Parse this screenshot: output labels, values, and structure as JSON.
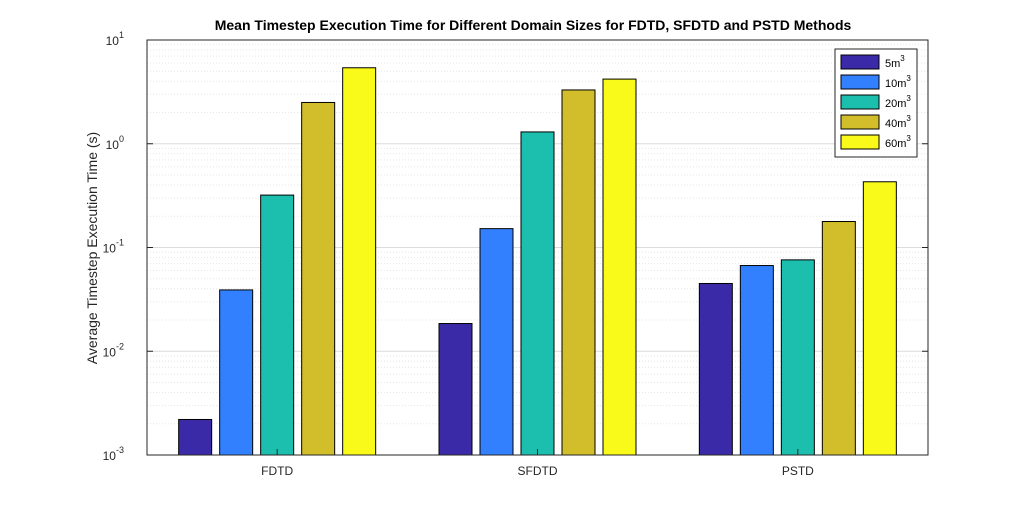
{
  "chart_data": {
    "type": "bar",
    "title": "Mean Timestep Execution Time for Different Domain Sizes for FDTD, SFDTD and PSTD Methods",
    "ylabel": "Average Timestep Execution Time (s)",
    "xlabel": "",
    "yscale": "log",
    "ylim": [
      0.001,
      10
    ],
    "yticks": [
      {
        "base": "10",
        "exp": "-3",
        "value": 0.001
      },
      {
        "base": "10",
        "exp": "-2",
        "value": 0.01
      },
      {
        "base": "10",
        "exp": "-1",
        "value": 0.1
      },
      {
        "base": "10",
        "exp": "0",
        "value": 1
      },
      {
        "base": "10",
        "exp": "1",
        "value": 10
      }
    ],
    "grid": true,
    "minor_grid": true,
    "legend_position": "top-right",
    "categories": [
      "FDTD",
      "SFDTD",
      "PSTD"
    ],
    "series": [
      {
        "name": "5m",
        "name_sup": "3",
        "color": "#3b2aa8",
        "values": [
          0.0022,
          0.0185,
          0.045
        ]
      },
      {
        "name": "10m",
        "name_sup": "3",
        "color": "#3380ff",
        "values": [
          0.039,
          0.152,
          0.067
        ]
      },
      {
        "name": "20m",
        "name_sup": "3",
        "color": "#1cbfae",
        "values": [
          0.32,
          1.3,
          0.076
        ]
      },
      {
        "name": "40m",
        "name_sup": "3",
        "color": "#d2bd2a",
        "values": [
          2.5,
          3.3,
          0.178
        ]
      },
      {
        "name": "60m",
        "name_sup": "3",
        "color": "#f9f91a",
        "values": [
          5.4,
          4.2,
          0.43
        ]
      }
    ]
  }
}
